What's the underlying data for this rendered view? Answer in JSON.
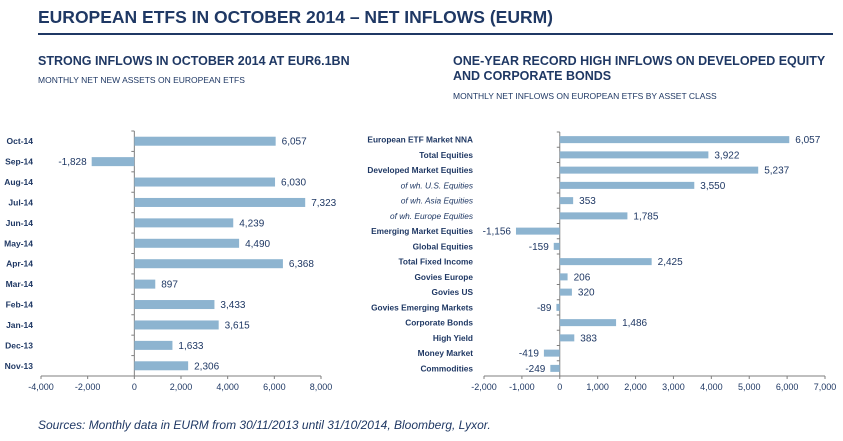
{
  "header": {
    "title": "EUROPEAN ETFS IN OCTOBER 2014 – NET INFLOWS (EURM)"
  },
  "left_panel": {
    "title": "STRONG INFLOWS IN OCTOBER 2014 AT EUR6.1BN",
    "subtitle": "MONTHLY NET NEW ASSETS ON EUROPEAN ETFS"
  },
  "right_panel": {
    "title": "ONE-YEAR RECORD HIGH INFLOWS ON DEVELOPED EQUITY AND CORPORATE BONDS",
    "subtitle": "MONTHLY NET INFLOWS ON EUROPEAN ETFS BY ASSET CLASS"
  },
  "footer": {
    "source": "Sources: Monthly data in EURM from 30/11/2013 until 31/10/2014, Bloomberg, Lyxor."
  },
  "colors": {
    "bar": "#8db4d0",
    "text": "#1f3864",
    "axis": "#7f7f7f"
  },
  "chart_data": [
    {
      "type": "bar",
      "orientation": "horizontal",
      "title": "STRONG INFLOWS IN OCTOBER 2014 AT EUR6.1BN",
      "subtitle": "MONTHLY NET NEW ASSETS ON EUROPEAN ETFS",
      "categories": [
        "Oct-14",
        "Sep-14",
        "Aug-14",
        "Jul-14",
        "Jun-14",
        "May-14",
        "Apr-14",
        "Mar-14",
        "Feb-14",
        "Jan-14",
        "Dec-13",
        "Nov-13"
      ],
      "values": [
        6057,
        -1828,
        6030,
        7323,
        4239,
        4490,
        6368,
        897,
        3433,
        3615,
        1633,
        2306
      ],
      "value_labels": [
        "6,057",
        "-1,828",
        "6,030",
        "7,323",
        "4,239",
        "4,490",
        "6,368",
        "897",
        "3,433",
        "3,615",
        "1,633",
        "2,306"
      ],
      "xlim": [
        -4000,
        8000
      ],
      "xticks": [
        -4000,
        -2000,
        0,
        2000,
        4000,
        6000,
        8000
      ],
      "xtick_labels": [
        "-4,000",
        "-2,000",
        "0",
        "2,000",
        "4,000",
        "6,000",
        "8,000"
      ],
      "grid": false,
      "legend": "none"
    },
    {
      "type": "bar",
      "orientation": "horizontal",
      "title": "ONE-YEAR RECORD HIGH INFLOWS ON DEVELOPED EQUITY AND CORPORATE BONDS",
      "subtitle": "MONTHLY NET INFLOWS ON EUROPEAN ETFS BY ASSET CLASS",
      "categories": [
        "European ETF Market NNA",
        "Total Equities",
        "Developed Market Equities",
        "of wh. U.S. Equities",
        "of wh. Asia Equities",
        "of wh. Europe Equities",
        "Emerging Market Equities",
        "Global Equities",
        "Total Fixed Income",
        "Govies Europe",
        "Govies US",
        "Govies Emerging Markets",
        "Corporate Bonds",
        "High Yield",
        "Money Market",
        "Commodities"
      ],
      "category_italic": [
        false,
        false,
        false,
        true,
        true,
        true,
        false,
        false,
        false,
        false,
        false,
        false,
        false,
        false,
        false,
        false
      ],
      "values": [
        6057,
        3922,
        5237,
        3550,
        353,
        1785,
        -1156,
        -159,
        2425,
        206,
        320,
        -89,
        1486,
        383,
        -419,
        -249
      ],
      "value_labels": [
        "6,057",
        "3,922",
        "5,237",
        "3,550",
        "353",
        "1,785",
        "-1,156",
        "-159",
        "2,425",
        "206",
        "320",
        "-89",
        "1,486",
        "383",
        "-419",
        "-249"
      ],
      "xlim": [
        -2000,
        7000
      ],
      "xticks": [
        -2000,
        -1000,
        0,
        1000,
        2000,
        3000,
        4000,
        5000,
        6000,
        7000
      ],
      "xtick_labels": [
        "-2,000",
        "-1,000",
        "0",
        "1,000",
        "2,000",
        "3,000",
        "4,000",
        "5,000",
        "6,000",
        "7,000"
      ],
      "grid": false,
      "legend": "none"
    }
  ]
}
